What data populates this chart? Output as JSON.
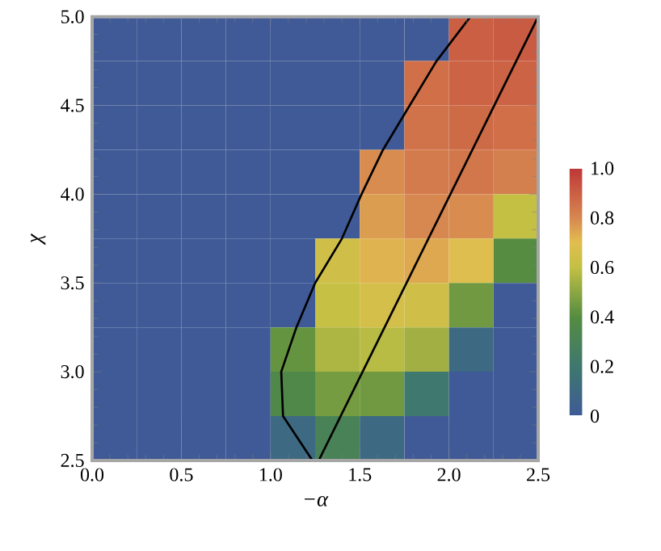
{
  "chart_data": {
    "type": "heatmap",
    "xlabel": "−α",
    "ylabel": "χ",
    "xlim": [
      0,
      2.5
    ],
    "ylim": [
      2.5,
      5.0
    ],
    "xticks": [
      {
        "value": 0,
        "label": "0.0"
      },
      {
        "value": 0.5,
        "label": "0.5"
      },
      {
        "value": 1,
        "label": "1.0"
      },
      {
        "value": 1.5,
        "label": "1.5"
      },
      {
        "value": 2,
        "label": "2.0"
      },
      {
        "value": 2.5,
        "label": "2.5"
      }
    ],
    "yticks": [
      {
        "value": 2.5,
        "label": "2.5"
      },
      {
        "value": 3,
        "label": "3.0"
      },
      {
        "value": 3.5,
        "label": "3.5"
      },
      {
        "value": 4,
        "label": "4.0"
      },
      {
        "value": 4.5,
        "label": "4.5"
      },
      {
        "value": 5,
        "label": "5.0"
      }
    ],
    "cells": [
      [
        0,
        0,
        0,
        0,
        0,
        0,
        0,
        0,
        0.9,
        0.91
      ],
      [
        0,
        0,
        0,
        0,
        0,
        0,
        0,
        0.86,
        0.89,
        0.89
      ],
      [
        0,
        0,
        0,
        0,
        0,
        0,
        0,
        0.85,
        0.87,
        0.86
      ],
      [
        0,
        0,
        0,
        0,
        0,
        0,
        0.79,
        0.83,
        0.84,
        0.82
      ],
      [
        0,
        0,
        0,
        0,
        0,
        0,
        0.76,
        0.8,
        0.79,
        0.6
      ],
      [
        0,
        0,
        0,
        0,
        0,
        0.64,
        0.72,
        0.74,
        0.69,
        0.4
      ],
      [
        0,
        0,
        0,
        0,
        0,
        0.61,
        0.66,
        0.64,
        0.45,
        0
      ],
      [
        0,
        0,
        0,
        0,
        0.43,
        0.56,
        0.58,
        0.54,
        0.1,
        0
      ],
      [
        0,
        0,
        0,
        0,
        0.36,
        0.46,
        0.45,
        0.2,
        0,
        0
      ],
      [
        0,
        0,
        0,
        0,
        0.1,
        0.3,
        0.1,
        0,
        0,
        0
      ]
    ],
    "clim": [
      0,
      1
    ],
    "cticks": [
      {
        "value": 0,
        "label": "0"
      },
      {
        "value": 0.2,
        "label": "0.2"
      },
      {
        "value": 0.4,
        "label": "0.4"
      },
      {
        "value": 0.6,
        "label": "0.6"
      },
      {
        "value": 0.8,
        "label": "0.8"
      },
      {
        "value": 1,
        "label": "1.0"
      }
    ],
    "series": [
      {
        "type": "line",
        "color": "#000000",
        "x": [
          1.27,
          2.5
        ],
        "values": [
          2.5,
          5.0
        ]
      },
      {
        "type": "line",
        "color": "#000000",
        "x": [
          1.235,
          1.07,
          1.06,
          1.145,
          1.25,
          1.4,
          1.51,
          1.63,
          1.78,
          1.93,
          2.12
        ],
        "values": [
          2.5,
          2.75,
          3.0,
          3.25,
          3.5,
          3.75,
          4.0,
          4.25,
          4.5,
          4.75,
          5.0
        ]
      }
    ]
  }
}
